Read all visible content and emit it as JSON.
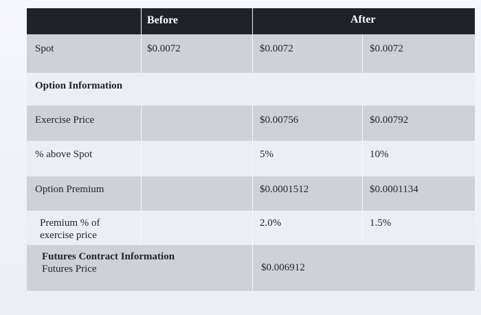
{
  "header": {
    "before": "Before",
    "after": "After"
  },
  "rows": {
    "spot": {
      "label": "Spot",
      "before": "$0.0072",
      "after_5": "$0.0072",
      "after_10": "$0.0072"
    },
    "option_information": {
      "label": "Option Information"
    },
    "exercise_price": {
      "label": "Exercise Price",
      "after_5": "$0.00756",
      "after_10": "$0.00792"
    },
    "above_spot": {
      "label": "% above Spot",
      "after_5": "5%",
      "after_10": "10%"
    },
    "option_premium": {
      "label": "Option Premium",
      "after_5": "$0.0001512",
      "after_10": "$0.0001134"
    },
    "premium_pct": {
      "label_line1": "Premium % of",
      "label_line2": "exercise price",
      "after_5": "2.0%",
      "after_10": "1.5%"
    },
    "futures": {
      "section_label": "Futures Contract Information",
      "label": "Futures Price",
      "after_5": "$0.006912"
    }
  }
}
